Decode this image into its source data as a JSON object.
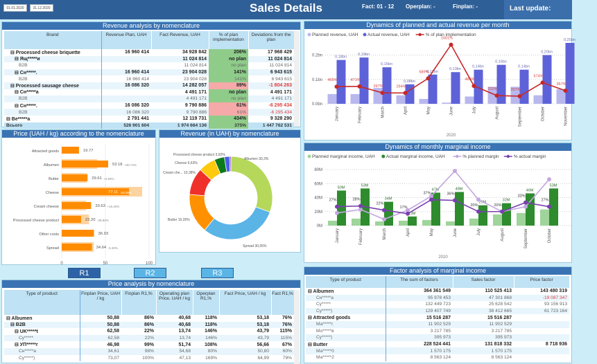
{
  "header": {
    "date_from": "01.01.2020",
    "date_to": "31.12.2020",
    "title": "Sales Details",
    "fact": "Fact: 01 - 12",
    "operplan": "Operplan: -",
    "finplan": "Finplan: -",
    "last_update": "Last update:"
  },
  "colors": {
    "header": "#2f5f97",
    "panel_title": "#3a73b3",
    "good": "#8fcc8a",
    "bad": "#f6a9a9"
  },
  "revenue_table": {
    "title": "Revenue analysis by nomenclature",
    "columns": [
      "Brand",
      "Revenue Plan, UAH",
      "Fact Revenue, UAH",
      "% of plan implementation",
      "Deviations from the plan"
    ],
    "rows": [
      {
        "l": 1,
        "s": "b",
        "c": [
          "⊟ Processed cheese briquette",
          "16 960 414",
          "34 928 842",
          "206%",
          "17 968 429"
        ],
        "p": "good"
      },
      {
        "l": 2,
        "s": "b",
        "c": [
          "⊟ Ящ*****и",
          "",
          "11 024 814",
          "no plan",
          "11 024 814"
        ],
        "p": "good"
      },
      {
        "l": 3,
        "s": "l",
        "c": [
          "B2B",
          "",
          "11 024 814",
          "no plan",
          "11 024 814"
        ],
        "p": "good"
      },
      {
        "l": 2,
        "s": "b",
        "c": [
          "⊟ Сн*****.",
          "16 960 414",
          "23 904 028",
          "141%",
          "6 943 615"
        ],
        "p": "good"
      },
      {
        "l": 3,
        "s": "l",
        "c": [
          "B2B",
          "16 960 414",
          "23 904 028",
          "141%",
          "6 943 615"
        ],
        "p": "good"
      },
      {
        "l": 1,
        "s": "b",
        "c": [
          "⊟ Processed sausage cheese",
          "16 086 320",
          "14 282 057",
          "89%",
          "-1 804 263"
        ],
        "p": "bad",
        "n": true
      },
      {
        "l": 2,
        "s": "b",
        "c": [
          "⊟ Сн*****а",
          "",
          "4 491 171",
          "no plan",
          "4 491 171"
        ],
        "p": "good"
      },
      {
        "l": 3,
        "s": "l",
        "c": [
          "B2B",
          "",
          "4 491 171",
          "no plan",
          "4 491 171"
        ],
        "p": "good"
      },
      {
        "l": 2,
        "s": "b",
        "c": [
          "⊟ Сн*****.",
          "16 086 320",
          "9 790 886",
          "61%",
          "-6 295 434"
        ],
        "p": "bad",
        "n": true
      },
      {
        "l": 3,
        "s": "l",
        "c": [
          "B2B",
          "16 086 320",
          "9 790 886",
          "61%",
          "-6 295 434"
        ],
        "p": "bad",
        "n": true
      },
      {
        "l": 0,
        "s": "b",
        "c": [
          "⊟ Ве*****а",
          "2 791 441",
          "12 119 731",
          "434%",
          "9 328 290"
        ],
        "p": "good"
      }
    ],
    "total": {
      "c": [
        "Всього",
        "526 901 604",
        "1 974 664 136",
        "375%",
        "1 447 762 531"
      ],
      "p": "good"
    }
  },
  "price_chart": {
    "type": "bar",
    "title": "Price (UAH / kg) according to the nomenclature",
    "categories": [
      "Attracted goods",
      "Albumen",
      "Butter",
      "Cheese",
      "Cream cheese",
      "Processed cheese product",
      "Other costs",
      "Spread"
    ],
    "values": [
      19.77,
      53.18,
      29.61,
      77.11,
      33.63,
      22.2,
      36.93,
      34.64
    ],
    "plan": [
      null,
      40.7,
      28.9,
      92.1,
      28.2,
      31.2,
      null,
      36.6
    ],
    "value_labels": [
      "19.77",
      "53.18",
      "29.61",
      "77.11",
      "33.63",
      "22.20",
      "36.93",
      "34.64"
    ],
    "deviation_labels": [
      "",
      "+30.74%",
      "+2.59%",
      "-16.28%",
      "+19.40%",
      "-28.80%",
      "",
      "-5.30%"
    ],
    "xticks": [
      "0",
      "50",
      "100"
    ],
    "xlim": [
      0,
      100
    ],
    "color": "#ff8c00",
    "plan_color": "#fdd3a0"
  },
  "donut": {
    "type": "pie",
    "title": "Revenue (in UAH) by nomenclature",
    "slices": [
      {
        "label": "Albumen 30,3%",
        "value": 30.3,
        "color": "#b5d85a"
      },
      {
        "label": "Spread 30,05%",
        "value": 30.05,
        "color": "#5ab4e6"
      },
      {
        "label": "Butter 15,35%",
        "value": 15.35,
        "color": "#ff9100"
      },
      {
        "label": "Cream che... 10,38%",
        "value": 10.38,
        "color": "#f0302a"
      },
      {
        "label": "Cheese 6,63%",
        "value": 6.63,
        "color": "#ffc90e"
      },
      {
        "label": "Processed cheese product 3,92%",
        "value": 3.92,
        "color": "#0d7a1a"
      },
      {
        "label": "",
        "value": 2.0,
        "color": "#4a5ee8"
      },
      {
        "label": "",
        "value": 0.5,
        "color": "#7b2fbf"
      }
    ]
  },
  "tabs": [
    "R1",
    "R2",
    "R3"
  ],
  "price_table": {
    "title": "Price analysis by nomenclature",
    "columns": [
      "Type of product",
      "Finplan Price, UAH / kg",
      "Finplan R1,%",
      "Operating plan Price, UAH / kg",
      "Operplan R1,%",
      "Fact Price, UAH / kg",
      "Fact R1,%"
    ],
    "rows": [
      {
        "l": 0,
        "s": "b",
        "c": [
          "⊟ Albumen",
          "50,88",
          "86%",
          "40,68",
          "118%",
          "53,18",
          "76%"
        ]
      },
      {
        "l": 1,
        "s": "b",
        "c": [
          "⊟ B2B",
          "50,88",
          "86%",
          "40,68",
          "118%",
          "53,18",
          "76%"
        ]
      },
      {
        "l": 2,
        "s": "b",
        "c": [
          "⊟ UK*****t",
          "62,58",
          "22%",
          "13,74",
          "146%",
          "43,79",
          "115%"
        ]
      },
      {
        "l": 3,
        "s": "l",
        "c": [
          "Су*****",
          "62,58",
          "22%",
          "13,74",
          "146%",
          "43,79",
          "115%"
        ]
      },
      {
        "l": 2,
        "s": "b",
        "c": [
          "⊟ УП*****г",
          "46,98",
          "99%",
          "51,74",
          "108%",
          "56,66",
          "67%"
        ]
      },
      {
        "l": 3,
        "s": "l",
        "c": [
          "Сн*****а",
          "34,61",
          "98%",
          "54,68",
          "80%",
          "50,80",
          "60%"
        ]
      },
      {
        "l": 3,
        "s": "l",
        "c": [
          "Су*****)",
          "73,07",
          "100%",
          "47,13",
          "169%",
          "64,99",
          "79%"
        ]
      }
    ]
  },
  "revenue_chart": {
    "type": "bar",
    "title": "Dynamics of planned and actual revenue per month",
    "legend": [
      "Planned revenue, UAH",
      "Actual revenue, UAH",
      "% of plan implementation"
    ],
    "categories": [
      "January",
      "February",
      "March",
      "April",
      "May",
      "June",
      "July",
      "August",
      "September",
      "October",
      "November"
    ],
    "xlabel": "2020",
    "yticks": [
      "0.0bn",
      "0.1bn",
      "0.2bn"
    ],
    "ylim": [
      0,
      0.25
    ],
    "planned": [
      0.04,
      0.04,
      0.065,
      0.035,
      0.02,
      0.005,
      0.03,
      0.07,
      0.07,
      0.035,
      0.06
    ],
    "actual": [
      0.18,
      0.19,
      0.15,
      0.08,
      0.12,
      0.13,
      0.14,
      0.16,
      0.14,
      0.2,
      0.25
    ],
    "actual_labels": [
      "0,18bn",
      "0,19bn",
      "0,15bn",
      "0,08bn",
      "0,12bn",
      "0,13bn",
      "0,14bn",
      "0,16bn",
      "0,14bn",
      "0,20bn",
      "0,25bn"
    ],
    "pct": [
      465,
      471,
      297,
      294,
      689,
      1601,
      486,
      222,
      207,
      574,
      357
    ],
    "pct_labels": [
      "465%",
      "471%",
      "297%",
      "294%",
      "689%",
      "1601%",
      "486%",
      "222%",
      "207%",
      "574%",
      "357%"
    ],
    "colors": {
      "planned": "#b8b8ee",
      "actual": "#5e62d8",
      "pct": "#c62828"
    }
  },
  "margin_chart": {
    "type": "bar",
    "title": "Dynamics of monthly marginal income",
    "legend": [
      "Planned marginal income, UAH",
      "Actual marginal income, UAH",
      "% planned margin",
      "% actual margin"
    ],
    "categories": [
      "January",
      "February",
      "March",
      "April",
      "May",
      "June",
      "July",
      "August",
      "September",
      "October"
    ],
    "xlabel": "2020",
    "yticks": [
      "0M",
      "20M",
      "40M",
      "60M",
      "80M"
    ],
    "ylim": [
      0,
      80
    ],
    "planned": [
      7,
      10,
      6,
      7,
      8,
      6,
      10,
      16,
      18,
      23
    ],
    "actual": [
      50,
      53,
      34,
      13,
      47,
      48,
      29,
      32,
      46,
      53
    ],
    "actual_labels": [
      "50M",
      "53M",
      "34M",
      "13M",
      "47M",
      "48M",
      "29M",
      "32M",
      "46M",
      "53M"
    ],
    "pct_planned": [
      18,
      23,
      9,
      22,
      42,
      78,
      37,
      20,
      27,
      66
    ],
    "pct_actual": [
      27,
      28,
      22,
      17,
      37,
      36,
      20,
      20,
      33,
      27
    ],
    "pct_actual_labels": [
      "27%",
      "28%",
      "22%",
      "17%",
      "37%",
      "36%",
      "20%",
      "20%",
      "33%",
      "27%"
    ],
    "colors": {
      "planned": "#9fd49a",
      "actual": "#2e8b2e",
      "pct_planned": "#c3a7e0",
      "pct_actual": "#7a3fb0"
    }
  },
  "factor_table": {
    "title": "Factor analysis of marginal income",
    "columns": [
      "Type of product",
      "The sum of factors",
      "Sales factor",
      "Price factor"
    ],
    "rows": [
      {
        "l": 0,
        "s": "b",
        "c": [
          "⊟ Albumen",
          "364 361 549",
          "110 525 413",
          "143 480 319"
        ]
      },
      {
        "l": 2,
        "s": "l",
        "c": [
          "Сн*****а",
          "95 978 453",
          "47 301 868",
          "-19 087 347"
        ],
        "n": true
      },
      {
        "l": 2,
        "s": "l",
        "c": [
          "Су*****",
          "132 449 723",
          "25 628 542",
          "93 156 913"
        ]
      },
      {
        "l": 2,
        "s": "l",
        "c": [
          "Су*****)",
          "129 407 749",
          "38 412 665",
          "61 723 164"
        ]
      },
      {
        "l": 0,
        "s": "b",
        "c": [
          "⊟ Attracted goods",
          "15 516 287",
          "15 516 287",
          ""
        ]
      },
      {
        "l": 2,
        "s": "l",
        "c": [
          "Ма*****г",
          "11 902 529",
          "11 902 529",
          ""
        ]
      },
      {
        "l": 2,
        "s": "l",
        "c": [
          "Мо*****в",
          "3 217 785",
          "3 217 785",
          ""
        ]
      },
      {
        "l": 2,
        "s": "l",
        "c": [
          "Су*****)",
          "395 973",
          "395 973",
          ""
        ]
      },
      {
        "l": 0,
        "s": "b",
        "c": [
          "⊟ Butter",
          "228 524 441",
          "131 818 332",
          "8 718 936"
        ]
      },
      {
        "l": 2,
        "s": "l",
        "c": [
          "Ма*****0",
          "1 570 175",
          "1 570 175",
          ""
        ]
      },
      {
        "l": 2,
        "s": "l",
        "c": [
          "Ма*****2",
          "8 563 124",
          "8 563 124",
          ""
        ]
      }
    ]
  }
}
